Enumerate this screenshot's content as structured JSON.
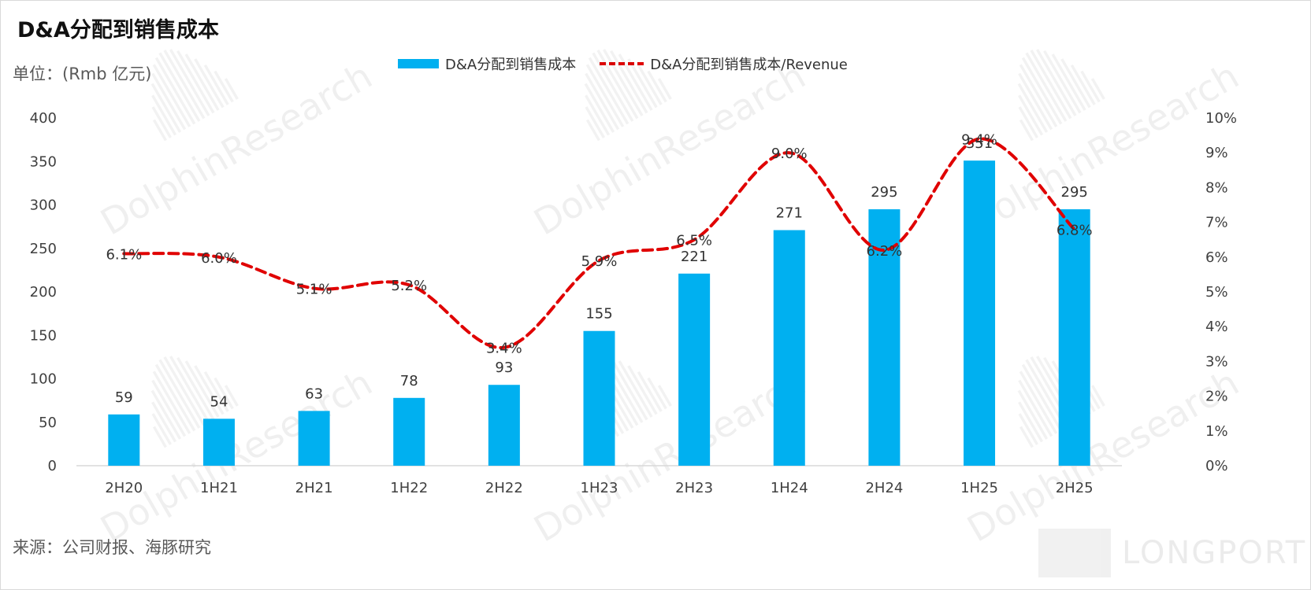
{
  "title": "D&A分配到销售成本",
  "unit_label": "单位：(Rmb 亿元)",
  "source_label": "来源：公司财报、海豚研究",
  "watermark": "DolphinResearch",
  "brand_watermark": "LONGPORT",
  "colors": {
    "bar": "#00b0f0",
    "line": "#e00000"
  },
  "chart_data": {
    "type": "bar",
    "title": "D&A分配到销售成本",
    "categories": [
      "2H20",
      "1H21",
      "2H21",
      "1H22",
      "2H22",
      "1H23",
      "2H23",
      "1H24",
      "2H24",
      "1H25",
      "2H25"
    ],
    "series": [
      {
        "name": "D&A分配到销售成本",
        "type": "bar",
        "axis": "left",
        "values": [
          59,
          54,
          63,
          78,
          93,
          155,
          221,
          271,
          295,
          351,
          295
        ]
      },
      {
        "name": "D&A分配到销售成本/Revenue",
        "type": "line",
        "axis": "right",
        "values": [
          6.1,
          6.0,
          5.1,
          5.2,
          3.4,
          5.9,
          6.5,
          9.0,
          6.2,
          9.4,
          6.8
        ]
      }
    ],
    "line_labels": [
      "6.1%",
      "6.0%",
      "5.1%",
      "5.2%",
      "3.4%",
      "5.9%",
      "6.5%",
      "9.0%",
      "6.2%",
      "9.4%",
      "6.8%"
    ],
    "y_left": {
      "ylim": [
        0,
        400
      ],
      "ticks": [
        "0",
        "50",
        "100",
        "150",
        "200",
        "250",
        "300",
        "350",
        "400"
      ]
    },
    "y_right": {
      "ylim": [
        0,
        10
      ],
      "ticks": [
        "0%",
        "1%",
        "2%",
        "3%",
        "4%",
        "5%",
        "6%",
        "7%",
        "8%",
        "9%",
        "10%"
      ]
    },
    "grid": false,
    "legend_position": "top-center"
  }
}
